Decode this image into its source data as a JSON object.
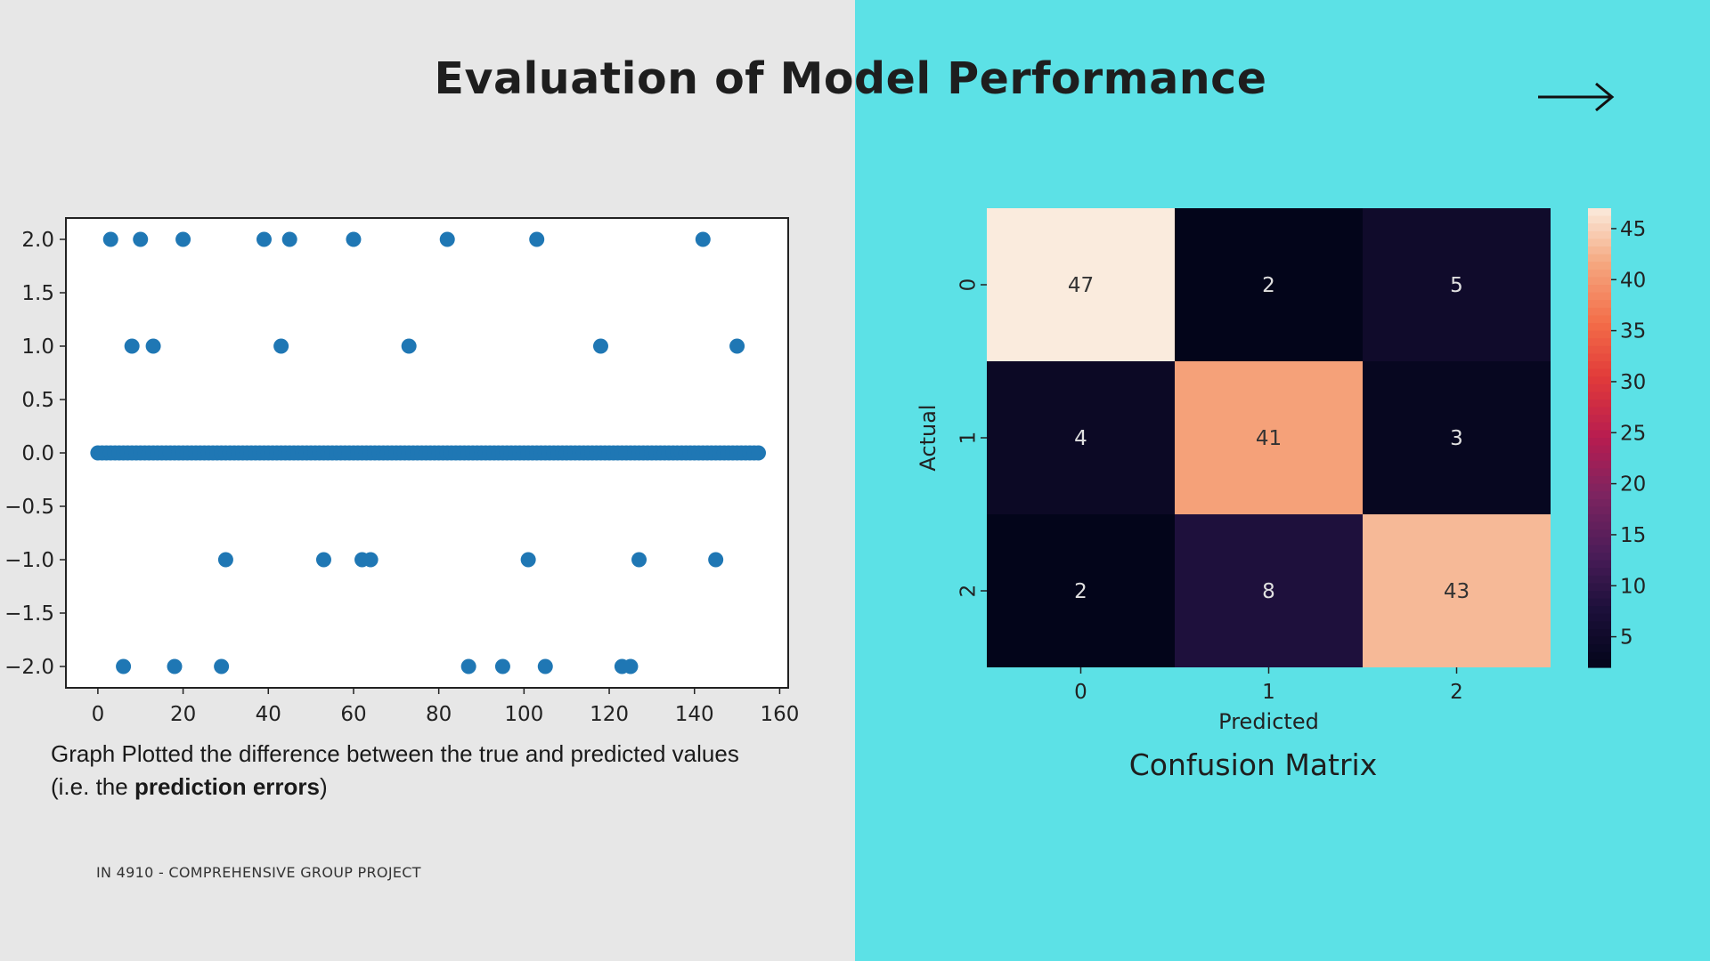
{
  "slide": {
    "title": "Evaluation of Model Performance",
    "footer": "IN 4910 - COMPREHENSIVE GROUP PROJECT",
    "left_bg": "#e7e7e7",
    "right_bg": "#5ce1e6",
    "next_icon": "right-arrow-icon"
  },
  "scatter": {
    "caption_line1": "Graph Plotted the difference between the true and predicted values",
    "caption_prefix": "(i.e. the ",
    "caption_bold": "prediction errors",
    "caption_suffix": ")"
  },
  "confusion": {
    "caption": "Confusion Matrix"
  },
  "chart_data": [
    {
      "type": "scatter",
      "title": "",
      "xlabel": "",
      "ylabel": "",
      "xlim": [
        -7.5,
        162
      ],
      "ylim": [
        -2.2,
        2.2
      ],
      "xticks": [
        0,
        20,
        40,
        60,
        80,
        100,
        120,
        140,
        160
      ],
      "yticks": [
        -2.0,
        -1.5,
        -1.0,
        -0.5,
        0.0,
        0.5,
        1.0,
        1.5,
        2.0
      ],
      "color": "#1f77b4",
      "points": [
        [
          3,
          2.0
        ],
        [
          10,
          2.0
        ],
        [
          20,
          2.0
        ],
        [
          39,
          2.0
        ],
        [
          45,
          2.0
        ],
        [
          60,
          2.0
        ],
        [
          82,
          2.0
        ],
        [
          103,
          2.0
        ],
        [
          142,
          2.0
        ],
        [
          8,
          1.0
        ],
        [
          13,
          1.0
        ],
        [
          43,
          1.0
        ],
        [
          73,
          1.0
        ],
        [
          118,
          1.0
        ],
        [
          150,
          1.0
        ],
        [
          30,
          -1.0
        ],
        [
          53,
          -1.0
        ],
        [
          62,
          -1.0
        ],
        [
          64,
          -1.0
        ],
        [
          101,
          -1.0
        ],
        [
          127,
          -1.0
        ],
        [
          145,
          -1.0
        ],
        [
          6,
          -2.0
        ],
        [
          18,
          -2.0
        ],
        [
          29,
          -2.0
        ],
        [
          87,
          -2.0
        ],
        [
          95,
          -2.0
        ],
        [
          105,
          -2.0
        ],
        [
          123,
          -2.0
        ],
        [
          125,
          -2.0
        ]
      ],
      "zero_band": {
        "y": 0.0,
        "x_from": 0,
        "x_to": 155
      }
    },
    {
      "type": "heatmap",
      "title": "",
      "xlabel": "Predicted",
      "ylabel": "Actual",
      "x_categories": [
        "0",
        "1",
        "2"
      ],
      "y_categories": [
        "0",
        "1",
        "2"
      ],
      "values": [
        [
          47,
          2,
          5
        ],
        [
          4,
          41,
          3
        ],
        [
          2,
          8,
          43
        ]
      ],
      "colorbar_ticks": [
        45,
        40,
        35,
        30,
        25,
        20,
        15,
        10,
        5
      ],
      "colorbar_range": [
        2,
        47
      ]
    }
  ]
}
